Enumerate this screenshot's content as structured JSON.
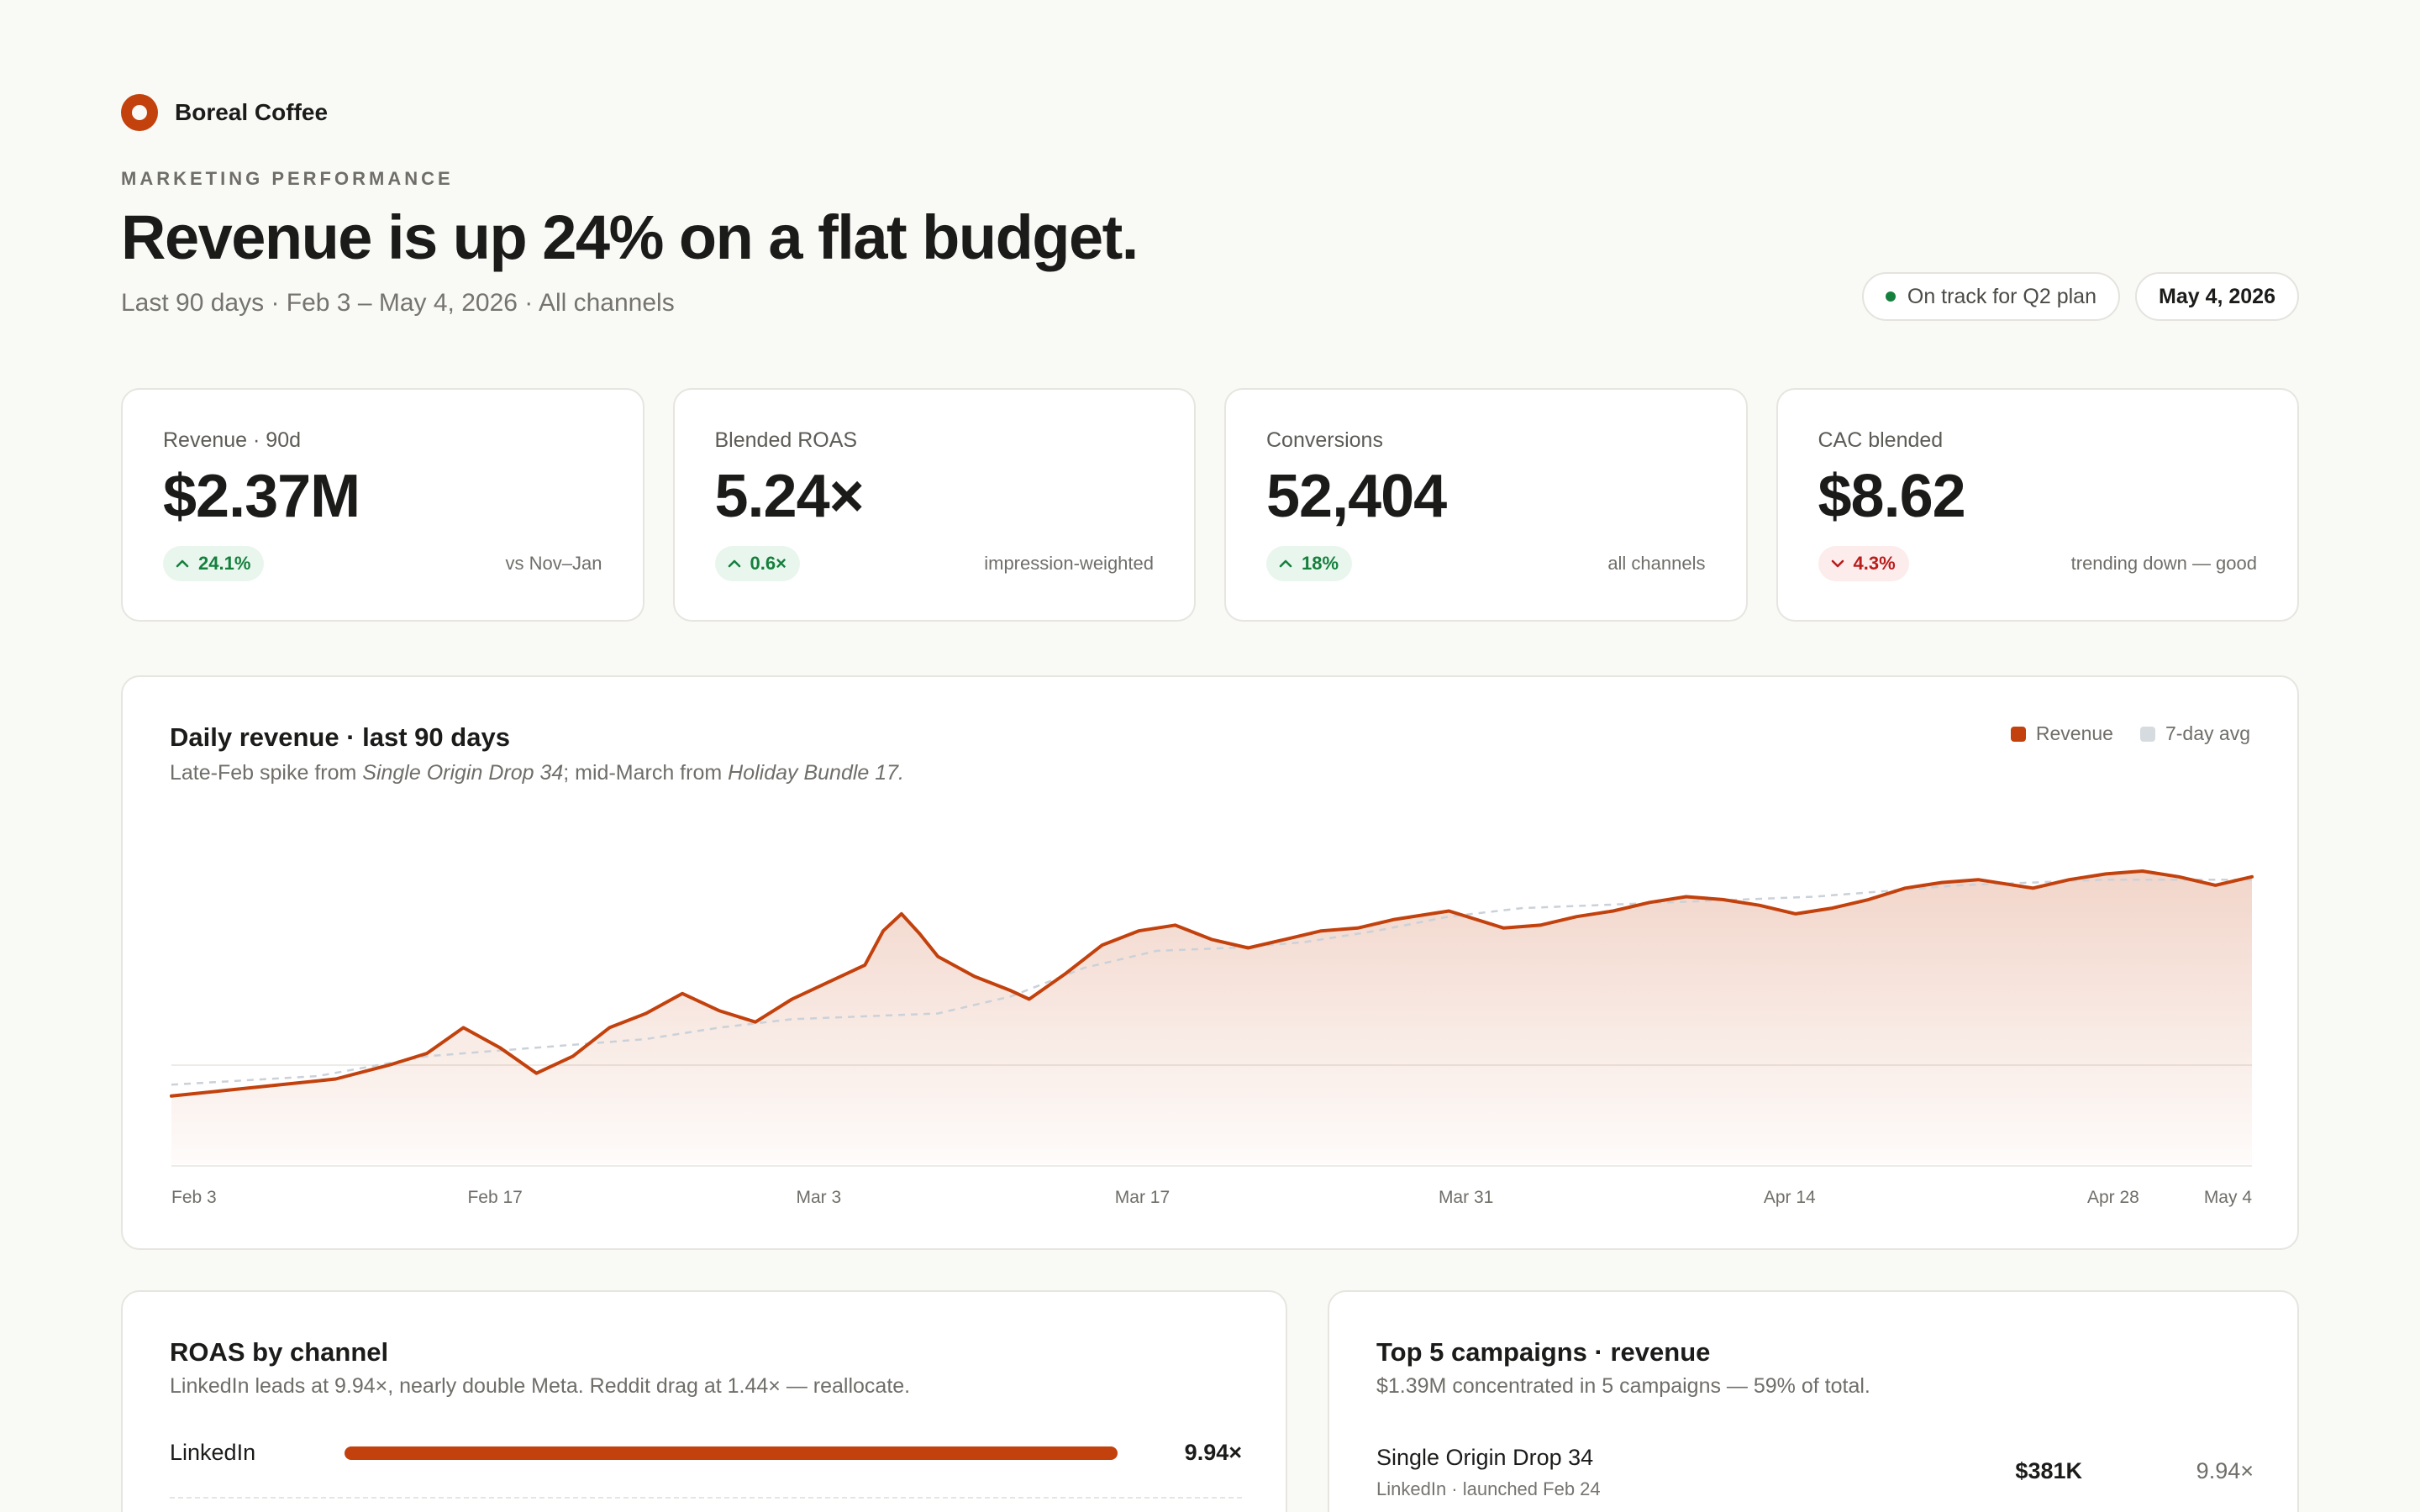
{
  "brand": {
    "name": "Boreal Coffee"
  },
  "header": {
    "eyebrow": "MARKETING PERFORMANCE",
    "headline": "Revenue is up 24% on a flat budget.",
    "subline": "Last 90 days · Feb 3 – May 4, 2026 · All channels",
    "status_pill": "On track for Q2 plan",
    "date_pill": "May 4, 2026"
  },
  "colors": {
    "accent": "#c2410c",
    "avg_line": "#cbd1d8",
    "positive": "#15803d",
    "negative": "#b91c1c"
  },
  "kpis": [
    {
      "label": "Revenue · 90d",
      "value": "$2.37M",
      "delta": "24.1%",
      "direction": "up",
      "note": "vs Nov–Jan"
    },
    {
      "label": "Blended ROAS",
      "value": "5.24×",
      "delta": "0.6×",
      "direction": "up",
      "note": "impression-weighted"
    },
    {
      "label": "Conversions",
      "value": "52,404",
      "delta": "18%",
      "direction": "up",
      "note": "all channels"
    },
    {
      "label": "CAC blended",
      "value": "$8.62",
      "delta": "4.3%",
      "direction": "down",
      "note": "trending down — good"
    }
  ],
  "revenue_chart": {
    "title": "Daily revenue · last 90 days",
    "subtitle_prefix": "Late-Feb spike from ",
    "subtitle_em1": "Single Origin Drop 34",
    "subtitle_mid": "; mid-March from ",
    "subtitle_em2": "Holiday Bundle 17.",
    "legend": {
      "revenue": "Revenue",
      "avg": "7-day avg"
    }
  },
  "chart_data": {
    "type": "line",
    "title": "Daily revenue · last 90 days",
    "xlabel": "",
    "ylabel": "",
    "x_tick_labels": [
      "Feb 3",
      "Feb 17",
      "Mar 3",
      "Mar 17",
      "Mar 31",
      "Apr 14",
      "Apr 28",
      "May 4"
    ],
    "x_tick_days": [
      0,
      14,
      28,
      42,
      56,
      70,
      84,
      90
    ],
    "grid": true,
    "legend_position": "top-right",
    "ylim": [
      0,
      100
    ],
    "series": [
      {
        "name": "Revenue",
        "points": [
          [
            0,
            21
          ],
          [
            3,
            23
          ],
          [
            6,
            25
          ],
          [
            9,
            27
          ],
          [
            12,
            32
          ],
          [
            14,
            36
          ],
          [
            16,
            45
          ],
          [
            18,
            38
          ],
          [
            20,
            29
          ],
          [
            22,
            35
          ],
          [
            24,
            45
          ],
          [
            26,
            50
          ],
          [
            28,
            57
          ],
          [
            30,
            51
          ],
          [
            32,
            47
          ],
          [
            34,
            55
          ],
          [
            36,
            61
          ],
          [
            38,
            67
          ],
          [
            39,
            79
          ],
          [
            40,
            85
          ],
          [
            41,
            78
          ],
          [
            42,
            70
          ],
          [
            44,
            63
          ],
          [
            46,
            58
          ],
          [
            47,
            55
          ],
          [
            49,
            64
          ],
          [
            51,
            74
          ],
          [
            53,
            79
          ],
          [
            55,
            81
          ],
          [
            57,
            76
          ],
          [
            59,
            73
          ],
          [
            61,
            76
          ],
          [
            63,
            79
          ],
          [
            65,
            80
          ],
          [
            67,
            83
          ],
          [
            70,
            86
          ],
          [
            73,
            80
          ],
          [
            75,
            81
          ],
          [
            77,
            84
          ],
          [
            79,
            86
          ],
          [
            81,
            89
          ],
          [
            83,
            91
          ],
          [
            85,
            90
          ],
          [
            87,
            88
          ],
          [
            89,
            85
          ],
          [
            91,
            87
          ],
          [
            93,
            90
          ],
          [
            95,
            94
          ],
          [
            97,
            96
          ],
          [
            99,
            97
          ],
          [
            102,
            94
          ],
          [
            104,
            97
          ],
          [
            106,
            99
          ],
          [
            108,
            100
          ],
          [
            110,
            98
          ],
          [
            112,
            95
          ],
          [
            114,
            98
          ]
        ]
      },
      {
        "name": "7-day avg",
        "points": [
          [
            0,
            25
          ],
          [
            8,
            28
          ],
          [
            14,
            35
          ],
          [
            20,
            38
          ],
          [
            26,
            41
          ],
          [
            30,
            45
          ],
          [
            34,
            48
          ],
          [
            38,
            49
          ],
          [
            42,
            50
          ],
          [
            46,
            56
          ],
          [
            50,
            66
          ],
          [
            54,
            72
          ],
          [
            58,
            73
          ],
          [
            62,
            75
          ],
          [
            66,
            79
          ],
          [
            70,
            84
          ],
          [
            74,
            87
          ],
          [
            78,
            88
          ],
          [
            82,
            89
          ],
          [
            86,
            90
          ],
          [
            90,
            91
          ],
          [
            94,
            93
          ],
          [
            98,
            95
          ],
          [
            102,
            96
          ],
          [
            106,
            97
          ],
          [
            110,
            97
          ],
          [
            114,
            97
          ]
        ]
      }
    ]
  },
  "roas": {
    "title": "ROAS by channel",
    "subtitle": "LinkedIn leads at 9.94×, nearly double Meta. Reddit drag at 1.44× — reallocate.",
    "rows": [
      {
        "name": "LinkedIn",
        "value": "9.94×",
        "fraction": 1.0
      }
    ]
  },
  "campaigns": {
    "title": "Top 5 campaigns · revenue",
    "subtitle": "$1.39M concentrated in 5 campaigns — 59% of total.",
    "rows": [
      {
        "name": "Single Origin Drop 34",
        "meta": "LinkedIn · launched Feb 24",
        "revenue": "$381K",
        "roas": "9.94×"
      }
    ]
  }
}
